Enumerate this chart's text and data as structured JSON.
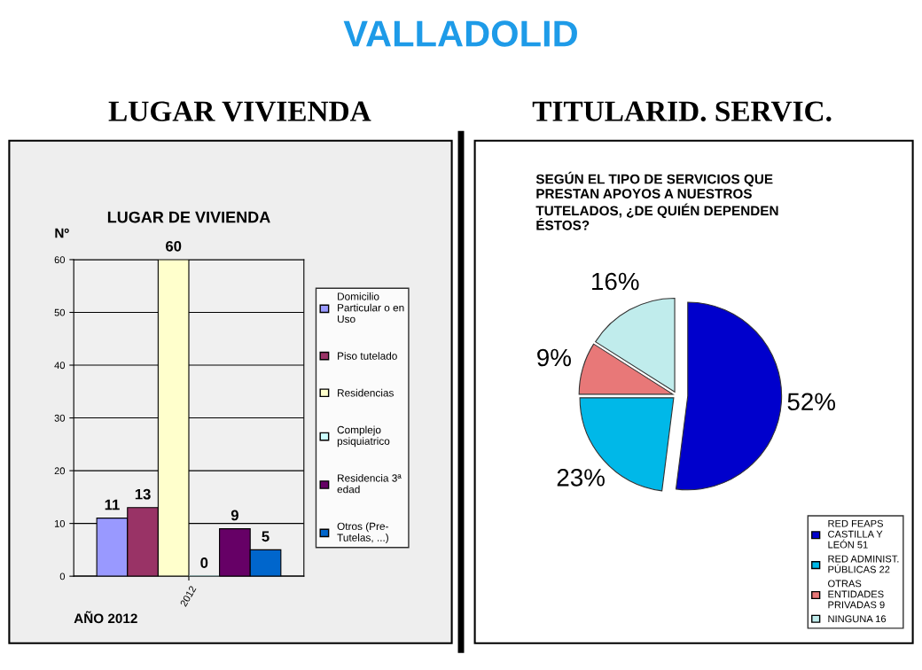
{
  "chart_data": [
    {
      "type": "bar",
      "title": "LUGAR DE VIVIENDA",
      "xlabel": "AÑO 2012",
      "ylabel": "Nº",
      "annotations": [
        "VALLADOLID",
        "LUGAR VIVIENDA"
      ],
      "categories": [
        "2012"
      ],
      "series": [
        {
          "name": "Domicilio Particular o en Uso",
          "color": "#9999ff",
          "values": [
            11
          ]
        },
        {
          "name": "Piso tutelado",
          "color": "#993366",
          "values": [
            13
          ]
        },
        {
          "name": "Residencias",
          "color": "#ffffcc",
          "values": [
            60
          ]
        },
        {
          "name": "Complejo psiquiatrico",
          "color": "#ccffff",
          "values": [
            0
          ]
        },
        {
          "name": "Residencia 3ª edad",
          "color": "#660066",
          "values": [
            9
          ]
        },
        {
          "name": "Otros (Pre-Tutelas, ...)",
          "color": "#0066cc",
          "values": [
            5
          ]
        }
      ],
      "ylim": [
        0,
        60
      ],
      "yticks": [
        0,
        10,
        20,
        30,
        40,
        50,
        60
      ],
      "grid": "y",
      "legend": "right",
      "data_labels": true
    },
    {
      "type": "pie",
      "title": "SEGÚN EL TIPO DE SERVICIOS QUE PRESTAN APOYOS A NUESTROS TUTELADOS, ¿DE QUIÉN DEPENDEN ÉSTOS?",
      "annotations": [
        "TITULARID. SERVIC."
      ],
      "categories": [
        "RED FEAPS CASTILLA Y LEÓN 51",
        "RED ADMINIST. PÚBLICAS 22",
        "OTRAS ENTIDADES PRIVADAS 9",
        "NINGUNA 16"
      ],
      "values": [
        52,
        23,
        9,
        16
      ],
      "colors": [
        "#0000cc",
        "#00b8e8",
        "#e87878",
        "#c0ecec"
      ],
      "value_labels": [
        "52%",
        "23%",
        "9%",
        "16%"
      ],
      "legend": "bottom right"
    }
  ]
}
